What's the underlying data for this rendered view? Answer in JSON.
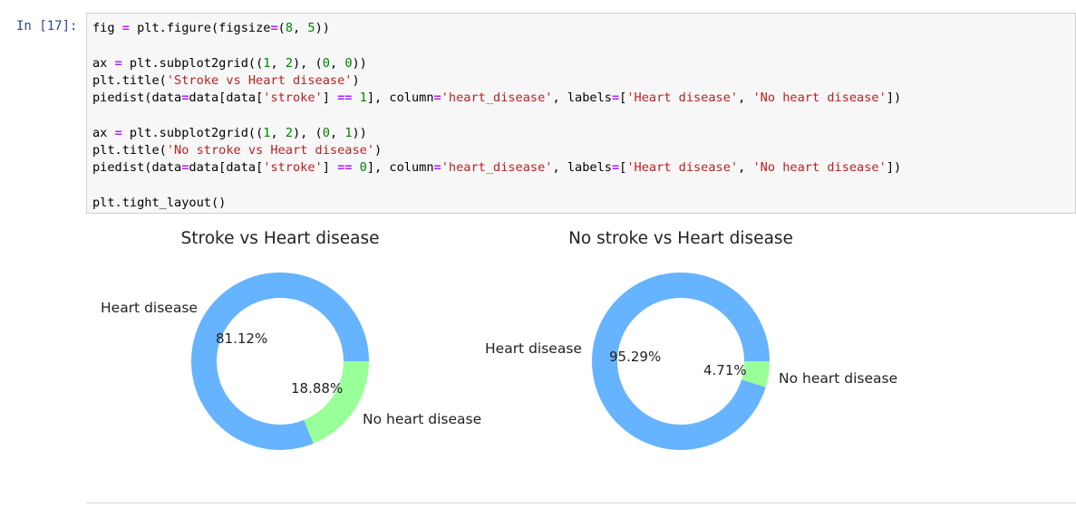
{
  "cell": {
    "prompt": "In [17]:",
    "code_lines": [
      [
        {
          "t": "fig ",
          "c": ""
        },
        {
          "t": "=",
          "c": "op"
        },
        {
          "t": " plt.figure(figsize",
          "c": ""
        },
        {
          "t": "=",
          "c": "op"
        },
        {
          "t": "(",
          "c": ""
        },
        {
          "t": "8",
          "c": "num"
        },
        {
          "t": ", ",
          "c": ""
        },
        {
          "t": "5",
          "c": "num"
        },
        {
          "t": "))",
          "c": ""
        }
      ],
      [],
      [
        {
          "t": "ax ",
          "c": ""
        },
        {
          "t": "=",
          "c": "op"
        },
        {
          "t": " plt.subplot2grid((",
          "c": ""
        },
        {
          "t": "1",
          "c": "num"
        },
        {
          "t": ", ",
          "c": ""
        },
        {
          "t": "2",
          "c": "num"
        },
        {
          "t": "), (",
          "c": ""
        },
        {
          "t": "0",
          "c": "num"
        },
        {
          "t": ", ",
          "c": ""
        },
        {
          "t": "0",
          "c": "num"
        },
        {
          "t": "))",
          "c": ""
        }
      ],
      [
        {
          "t": "plt.title(",
          "c": ""
        },
        {
          "t": "'Stroke vs Heart disease'",
          "c": "str"
        },
        {
          "t": ")",
          "c": ""
        }
      ],
      [
        {
          "t": "piedist(data",
          "c": ""
        },
        {
          "t": "=",
          "c": "op"
        },
        {
          "t": "data[data[",
          "c": ""
        },
        {
          "t": "'stroke'",
          "c": "str"
        },
        {
          "t": "] ",
          "c": ""
        },
        {
          "t": "==",
          "c": "op"
        },
        {
          "t": " ",
          "c": ""
        },
        {
          "t": "1",
          "c": "num"
        },
        {
          "t": "], column",
          "c": ""
        },
        {
          "t": "=",
          "c": "op"
        },
        {
          "t": "'heart_disease'",
          "c": "str"
        },
        {
          "t": ", labels",
          "c": ""
        },
        {
          "t": "=",
          "c": "op"
        },
        {
          "t": "[",
          "c": ""
        },
        {
          "t": "'Heart disease'",
          "c": "str"
        },
        {
          "t": ", ",
          "c": ""
        },
        {
          "t": "'No heart disease'",
          "c": "str"
        },
        {
          "t": "])",
          "c": ""
        }
      ],
      [],
      [
        {
          "t": "ax ",
          "c": ""
        },
        {
          "t": "=",
          "c": "op"
        },
        {
          "t": " plt.subplot2grid((",
          "c": ""
        },
        {
          "t": "1",
          "c": "num"
        },
        {
          "t": ", ",
          "c": ""
        },
        {
          "t": "2",
          "c": "num"
        },
        {
          "t": "), (",
          "c": ""
        },
        {
          "t": "0",
          "c": "num"
        },
        {
          "t": ", ",
          "c": ""
        },
        {
          "t": "1",
          "c": "num"
        },
        {
          "t": "))",
          "c": ""
        }
      ],
      [
        {
          "t": "plt.title(",
          "c": ""
        },
        {
          "t": "'No stroke vs Heart disease'",
          "c": "str"
        },
        {
          "t": ")",
          "c": ""
        }
      ],
      [
        {
          "t": "piedist(data",
          "c": ""
        },
        {
          "t": "=",
          "c": "op"
        },
        {
          "t": "data[data[",
          "c": ""
        },
        {
          "t": "'stroke'",
          "c": "str"
        },
        {
          "t": "] ",
          "c": ""
        },
        {
          "t": "==",
          "c": "op"
        },
        {
          "t": " ",
          "c": ""
        },
        {
          "t": "0",
          "c": "num"
        },
        {
          "t": "], column",
          "c": ""
        },
        {
          "t": "=",
          "c": "op"
        },
        {
          "t": "'heart_disease'",
          "c": "str"
        },
        {
          "t": ", labels",
          "c": ""
        },
        {
          "t": "=",
          "c": "op"
        },
        {
          "t": "[",
          "c": ""
        },
        {
          "t": "'Heart disease'",
          "c": "str"
        },
        {
          "t": ", ",
          "c": ""
        },
        {
          "t": "'No heart disease'",
          "c": "str"
        },
        {
          "t": "])",
          "c": ""
        }
      ],
      [],
      [
        {
          "t": "plt.tight_layout()",
          "c": ""
        }
      ]
    ]
  },
  "colors": {
    "heart_disease": "#66b3ff",
    "no_heart_disease": "#99ff99"
  },
  "chart_data": [
    {
      "type": "pie",
      "donut": true,
      "title": "Stroke vs Heart disease",
      "labels": [
        "Heart disease",
        "No heart disease"
      ],
      "values": [
        81.12,
        18.88
      ],
      "value_labels": [
        "81.12%",
        "18.88%"
      ]
    },
    {
      "type": "pie",
      "donut": true,
      "title": "No stroke vs Heart disease",
      "labels": [
        "Heart disease",
        "No heart disease"
      ],
      "values": [
        95.29,
        4.71
      ],
      "value_labels": [
        "95.29%",
        "4.71%"
      ]
    }
  ]
}
